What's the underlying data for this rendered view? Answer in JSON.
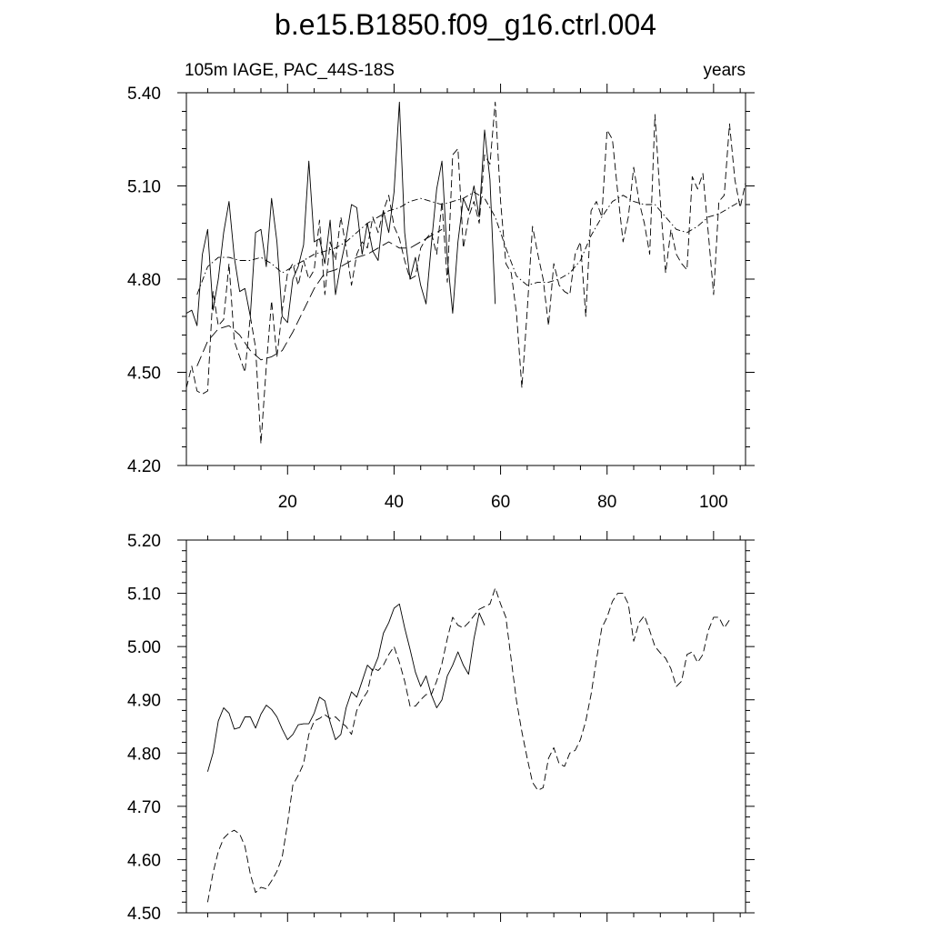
{
  "title": "b.e15.B1850.f09_g16.ctrl.004",
  "subtitle_left": "105m IAGE, PAC_44S-18S",
  "subtitle_right": "years",
  "chart_data": [
    {
      "type": "line",
      "xlim": [
        1,
        106
      ],
      "ylim": [
        4.2,
        5.4
      ],
      "yticks": [
        "4.20",
        "4.50",
        "4.80",
        "5.10",
        "5.40"
      ],
      "xticks": [
        "20",
        "40",
        "60",
        "80",
        "100"
      ],
      "series": [
        {
          "style": "solid",
          "x": [
            1,
            2,
            3,
            4,
            5,
            6,
            7,
            8,
            9,
            10,
            11,
            12,
            13,
            14,
            15,
            16,
            17,
            18,
            19,
            20,
            21,
            22,
            23,
            24,
            25,
            26,
            27,
            28,
            29,
            30,
            31,
            32,
            33,
            34,
            35,
            36,
            37,
            38,
            39,
            40,
            41,
            42,
            43,
            44,
            45,
            46,
            47,
            48,
            49,
            50,
            51,
            52,
            53,
            54,
            55,
            56,
            57,
            58,
            59
          ],
          "y": [
            4.69,
            4.7,
            4.65,
            4.88,
            4.96,
            4.7,
            4.8,
            4.95,
            5.05,
            4.87,
            4.76,
            4.77,
            4.68,
            4.95,
            4.96,
            4.84,
            5.06,
            4.92,
            4.68,
            4.66,
            4.8,
            4.84,
            4.91,
            5.18,
            4.92,
            4.93,
            4.85,
            4.99,
            4.75,
            4.85,
            4.93,
            5.04,
            5.03,
            4.88,
            4.98,
            4.89,
            4.86,
            5.02,
            4.95,
            5.08,
            5.37,
            4.95,
            4.8,
            4.87,
            4.78,
            4.72,
            4.91,
            5.09,
            5.18,
            4.87,
            4.69,
            4.92,
            5.06,
            5.02,
            5.1,
            5.0,
            5.28,
            5.12,
            4.72
          ]
        },
        {
          "style": "dashed",
          "x": [
            1,
            2,
            3,
            4,
            5,
            6,
            7,
            8,
            9,
            10,
            11,
            12,
            13,
            14,
            15,
            16,
            17,
            18,
            19,
            20,
            21,
            22,
            23,
            24,
            25,
            26,
            27,
            28,
            29,
            30,
            31,
            32,
            33,
            34,
            35,
            36,
            37,
            38,
            39,
            40,
            41,
            42,
            43,
            44,
            45,
            46,
            47,
            48,
            49,
            50,
            51,
            52,
            53,
            54,
            55,
            56,
            57,
            58,
            59,
            60,
            61,
            62,
            63,
            64,
            65,
            66,
            67,
            68,
            69,
            70,
            71,
            72,
            73,
            74,
            75,
            76,
            77,
            78,
            79,
            80,
            81,
            82,
            83,
            84,
            85,
            86,
            87,
            88,
            89,
            90,
            91,
            92,
            93,
            94,
            95,
            96,
            97,
            98,
            99,
            100,
            101,
            102,
            103,
            104,
            105,
            106
          ],
          "y": [
            4.45,
            4.52,
            4.44,
            4.43,
            4.44,
            4.76,
            4.65,
            4.67,
            4.85,
            4.6,
            4.55,
            4.5,
            4.68,
            4.58,
            4.27,
            4.52,
            4.73,
            4.55,
            4.7,
            4.82,
            4.85,
            4.78,
            4.86,
            4.8,
            4.83,
            4.99,
            4.75,
            4.92,
            4.86,
            5.0,
            4.9,
            4.78,
            4.88,
            4.92,
            4.9,
            5.0,
            4.95,
            5.02,
            5.07,
            4.97,
            4.93,
            4.86,
            4.8,
            4.81,
            4.9,
            4.93,
            4.95,
            4.88,
            5.05,
            4.79,
            5.2,
            5.22,
            4.9,
            5.0,
            5.05,
            4.98,
            5.2,
            5.17,
            5.37,
            5.05,
            4.85,
            4.82,
            4.69,
            4.45,
            4.7,
            4.97,
            4.88,
            4.8,
            4.65,
            4.85,
            4.78,
            4.76,
            4.75,
            4.88,
            4.92,
            4.68,
            5.02,
            5.05,
            5.0,
            5.28,
            5.25,
            5.08,
            4.92,
            5.0,
            5.16,
            5.05,
            4.98,
            4.88,
            5.33,
            5.05,
            4.82,
            4.96,
            4.88,
            4.85,
            4.83,
            5.13,
            5.09,
            5.14,
            4.95,
            4.75,
            5.05,
            5.07,
            5.3,
            5.12,
            5.03,
            5.11
          ]
        },
        {
          "style": "dash-dot",
          "x": [
            3,
            5,
            7,
            9,
            11,
            13,
            15,
            17,
            19,
            21,
            23,
            25,
            27,
            29,
            31,
            33,
            35,
            37,
            39,
            41,
            43,
            45,
            47,
            49,
            51,
            53,
            55,
            57,
            59,
            61,
            63,
            65,
            67,
            69,
            71,
            73,
            75,
            77,
            79,
            81,
            83,
            85,
            87,
            89,
            91,
            93,
            95,
            97,
            99,
            101,
            103,
            105
          ],
          "y": [
            4.75,
            4.84,
            4.87,
            4.87,
            4.86,
            4.86,
            4.87,
            4.85,
            4.82,
            4.84,
            4.86,
            4.88,
            4.89,
            4.9,
            4.92,
            4.95,
            4.98,
            5.0,
            5.02,
            5.03,
            5.05,
            5.06,
            5.05,
            5.04,
            5.05,
            5.06,
            5.08,
            5.06,
            5.0,
            4.9,
            4.81,
            4.78,
            4.79,
            4.79,
            4.8,
            4.82,
            4.86,
            4.94,
            5.0,
            5.05,
            5.07,
            5.05,
            5.04,
            5.04,
            5.0,
            4.96,
            4.95,
            4.97,
            5.0,
            5.01,
            5.03,
            5.05
          ]
        },
        {
          "style": "dash-long",
          "x": [
            3,
            5,
            7,
            9,
            11,
            13,
            15,
            17,
            19,
            21,
            23,
            25,
            27,
            29,
            31,
            33,
            35,
            37,
            39,
            41,
            43,
            45,
            47,
            49
          ],
          "y": [
            4.52,
            4.6,
            4.64,
            4.65,
            4.62,
            4.57,
            4.54,
            4.55,
            4.57,
            4.63,
            4.7,
            4.77,
            4.82,
            4.83,
            4.85,
            4.87,
            4.88,
            4.9,
            4.92,
            4.9,
            4.9,
            4.92,
            4.94,
            4.96
          ]
        }
      ]
    },
    {
      "type": "line",
      "ylim": [
        4.5,
        5.2
      ],
      "yticks": [
        "4.50",
        "4.60",
        "4.70",
        "4.80",
        "4.90",
        "5.00",
        "5.10",
        "5.20"
      ],
      "series": [
        {
          "style": "solid",
          "x": [
            5,
            6,
            7,
            8,
            9,
            10,
            11,
            12,
            13,
            14,
            15,
            16,
            17,
            18,
            19,
            20,
            21,
            22,
            23,
            24,
            25,
            26,
            27,
            28,
            29,
            30,
            31,
            32,
            33,
            34,
            35,
            36,
            37,
            38,
            39,
            40,
            41,
            42,
            43,
            44,
            45,
            46,
            47,
            48,
            49,
            50,
            51,
            52,
            53,
            54,
            55,
            56,
            57
          ],
          "y": [
            4.765,
            4.8,
            4.86,
            4.885,
            4.875,
            4.845,
            4.848,
            4.868,
            4.868,
            4.847,
            4.873,
            4.89,
            4.882,
            4.868,
            4.845,
            4.825,
            4.835,
            4.853,
            4.855,
            4.855,
            4.875,
            4.905,
            4.898,
            4.858,
            4.825,
            4.835,
            4.885,
            4.915,
            4.905,
            4.935,
            4.965,
            4.955,
            4.98,
            5.025,
            5.045,
            5.072,
            5.08,
            5.035,
            4.995,
            4.952,
            4.925,
            4.945,
            4.91,
            4.885,
            4.9,
            4.945,
            4.965,
            4.99,
            4.965,
            4.948,
            5.015,
            5.063,
            5.04
          ]
        },
        {
          "style": "dashed",
          "x": [
            5,
            6,
            7,
            8,
            9,
            10,
            11,
            12,
            13,
            14,
            15,
            16,
            17,
            18,
            19,
            20,
            21,
            22,
            23,
            24,
            25,
            26,
            27,
            28,
            29,
            30,
            31,
            32,
            33,
            34,
            35,
            36,
            37,
            38,
            39,
            40,
            41,
            42,
            43,
            44,
            45,
            46,
            47,
            48,
            49,
            50,
            51,
            52,
            53,
            54,
            55,
            56,
            57,
            58,
            59,
            60,
            61,
            62,
            63,
            64,
            65,
            66,
            67,
            68,
            69,
            70,
            71,
            72,
            73,
            74,
            75,
            76,
            77,
            78,
            79,
            80,
            81,
            82,
            83,
            84,
            85,
            86,
            87,
            88,
            89,
            90,
            91,
            92,
            93,
            94,
            95,
            96,
            97,
            98,
            99,
            100,
            101,
            102,
            103
          ],
          "y": [
            4.52,
            4.575,
            4.615,
            4.64,
            4.65,
            4.655,
            4.648,
            4.625,
            4.573,
            4.538,
            4.548,
            4.545,
            4.56,
            4.578,
            4.605,
            4.668,
            4.74,
            4.758,
            4.78,
            4.835,
            4.86,
            4.865,
            4.872,
            4.865,
            4.868,
            4.858,
            4.85,
            4.835,
            4.88,
            4.9,
            4.915,
            4.96,
            4.955,
            4.965,
            4.985,
            5.0,
            4.97,
            4.935,
            4.888,
            4.888,
            4.9,
            4.91,
            4.91,
            4.935,
            4.968,
            5.015,
            5.055,
            5.04,
            5.035,
            5.045,
            5.058,
            5.07,
            5.075,
            5.08,
            5.11,
            5.08,
            5.055,
            4.975,
            4.898,
            4.84,
            4.79,
            4.745,
            4.73,
            4.735,
            4.79,
            4.81,
            4.78,
            4.775,
            4.8,
            4.805,
            4.825,
            4.86,
            4.91,
            4.975,
            5.035,
            5.055,
            5.085,
            5.1,
            5.1,
            5.08,
            5.01,
            5.045,
            5.058,
            5.03,
            5.0,
            4.988,
            4.978,
            4.958,
            4.925,
            4.935,
            4.985,
            4.99,
            4.97,
            4.985,
            5.03,
            5.055,
            5.055,
            5.035,
            5.05
          ]
        }
      ]
    }
  ]
}
